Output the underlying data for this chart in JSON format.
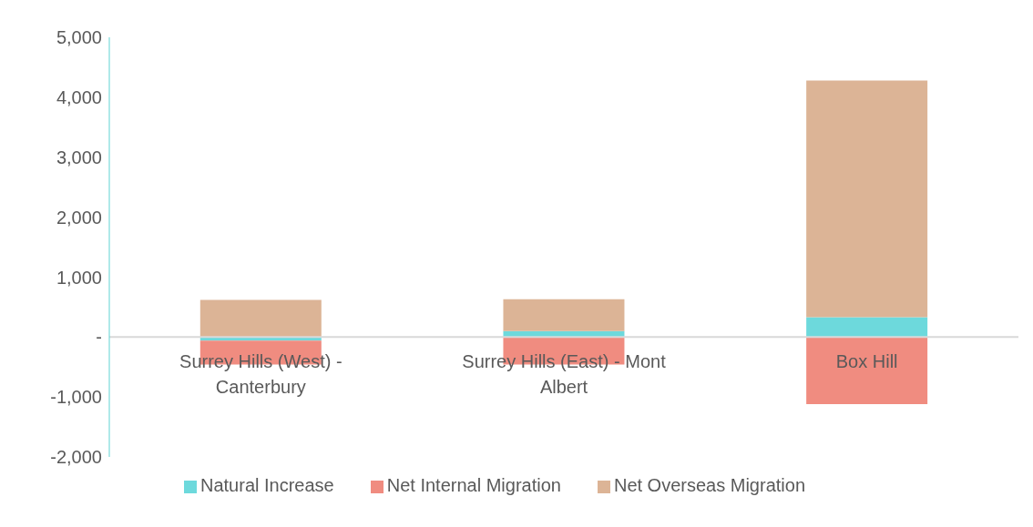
{
  "chart_data": {
    "type": "bar",
    "stacked": true,
    "categories": [
      "Surrey Hills (West) - Canterbury",
      "Surrey Hills (East) - Mont Albert",
      "Box Hill"
    ],
    "series": [
      {
        "name": "Natural Increase",
        "color": "#6dd9dc",
        "values": [
          -60,
          100,
          330
        ]
      },
      {
        "name": "Net Internal Migration",
        "color": "#f08c80",
        "values": [
          -400,
          -460,
          -1120
        ]
      },
      {
        "name": "Net Overseas Migration",
        "color": "#dcb496",
        "values": [
          620,
          530,
          3950
        ]
      }
    ],
    "ylim": [
      -2000,
      5000
    ],
    "yticks": [
      {
        "value": -2000,
        "label": "-2,000"
      },
      {
        "value": -1000,
        "label": "-1,000"
      },
      {
        "value": 0,
        "label": "-"
      },
      {
        "value": 1000,
        "label": "1,000"
      },
      {
        "value": 2000,
        "label": "2,000"
      },
      {
        "value": 3000,
        "label": "3,000"
      },
      {
        "value": 4000,
        "label": "4,000"
      },
      {
        "value": 5000,
        "label": "5,000"
      }
    ],
    "legend": "bottom"
  }
}
